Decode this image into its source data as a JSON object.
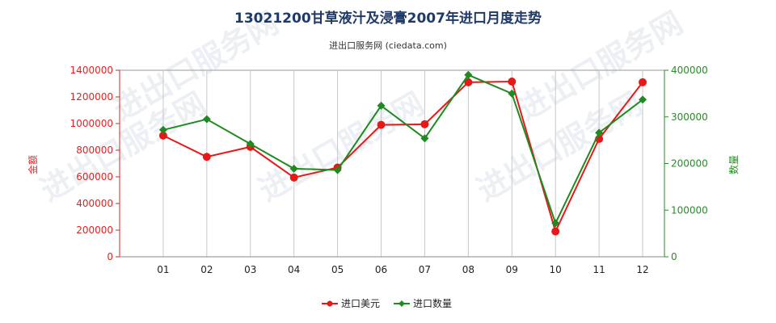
{
  "chart_data": {
    "type": "line",
    "title": "13021200甘草液汁及浸膏2007年进口月度走势",
    "subtitle": "进出口服务网 (ciedata.com)",
    "categories": [
      "01",
      "02",
      "03",
      "04",
      "05",
      "06",
      "07",
      "08",
      "09",
      "10",
      "11",
      "12"
    ],
    "y_left": {
      "label": "金额",
      "ylim": [
        0,
        1400000
      ],
      "ticks": [
        0,
        200000,
        400000,
        600000,
        800000,
        1000000,
        1200000,
        1400000
      ],
      "tick_labels": [
        "0",
        "200000",
        "400000",
        "600000",
        "800000",
        "1000000",
        "1200000",
        "1400000"
      ]
    },
    "y_right": {
      "label": "数量",
      "ylim": [
        0,
        400000
      ],
      "ticks": [
        0,
        100000,
        200000,
        300000,
        400000
      ],
      "tick_labels": [
        "0",
        "100000",
        "200000",
        "300000",
        "400000"
      ]
    },
    "series": [
      {
        "name": "进口美元",
        "axis": "left",
        "color": "#e81818",
        "values": [
          910000,
          750000,
          825000,
          595000,
          670000,
          990000,
          995000,
          1310000,
          1315000,
          190000,
          885000,
          1310000
        ]
      },
      {
        "name": "进口数量",
        "axis": "right",
        "color": "#1f8a1f",
        "values": [
          272000,
          295000,
          242000,
          189000,
          186000,
          324000,
          254000,
          390000,
          350000,
          72000,
          266000,
          337000
        ]
      }
    ],
    "grid": "vertical",
    "legend": "bottom-center",
    "watermark": "进出口服务网"
  }
}
